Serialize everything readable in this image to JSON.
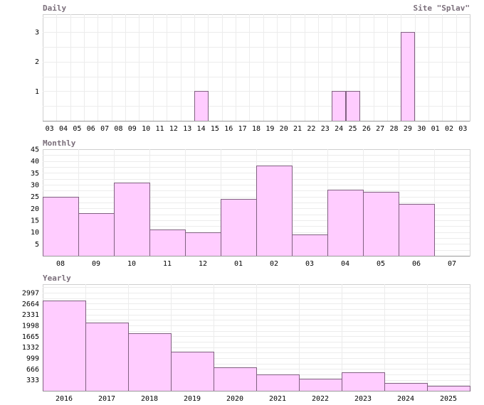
{
  "site_label": "Site \"Splav\"",
  "chart_data": [
    {
      "type": "bar",
      "title": "Daily",
      "categories": [
        "03",
        "04",
        "05",
        "06",
        "07",
        "08",
        "09",
        "10",
        "11",
        "12",
        "13",
        "14",
        "15",
        "16",
        "17",
        "18",
        "19",
        "20",
        "21",
        "22",
        "23",
        "24",
        "25",
        "26",
        "27",
        "28",
        "29",
        "30",
        "01",
        "02",
        "03"
      ],
      "values": [
        0,
        0,
        0,
        0,
        0,
        0,
        0,
        0,
        0,
        0,
        0,
        1,
        0,
        0,
        0,
        0,
        0,
        0,
        0,
        0,
        0,
        1,
        1,
        0,
        0,
        0,
        3,
        0,
        0,
        0,
        0
      ],
      "y_ticks": [
        1,
        2,
        3
      ],
      "ylim": [
        0,
        3.6
      ],
      "grid": true,
      "bar_color": "#ffccff",
      "bar_edge_color": "#806080"
    },
    {
      "type": "bar",
      "title": "Monthly",
      "categories": [
        "08",
        "09",
        "10",
        "11",
        "12",
        "01",
        "02",
        "03",
        "04",
        "05",
        "06",
        "07"
      ],
      "values": [
        25,
        18,
        31,
        11,
        10,
        24,
        38,
        9,
        28,
        27,
        22,
        0
      ],
      "y_ticks": [
        5,
        10,
        15,
        20,
        25,
        30,
        35,
        40,
        45
      ],
      "ylim": [
        0,
        45
      ],
      "grid": true,
      "bar_color": "#ffccff",
      "bar_edge_color": "#806080"
    },
    {
      "type": "bar",
      "title": "Yearly",
      "categories": [
        "2016",
        "2017",
        "2018",
        "2019",
        "2020",
        "2021",
        "2022",
        "2023",
        "2024",
        "2025"
      ],
      "values": [
        2750,
        2080,
        1770,
        1200,
        710,
        510,
        380,
        570,
        240,
        160
      ],
      "y_ticks": [
        333,
        666,
        999,
        1332,
        1665,
        1998,
        2331,
        2664,
        2997
      ],
      "ylim": [
        0,
        3260
      ],
      "grid": true,
      "bar_color": "#ffccff",
      "bar_edge_color": "#806080"
    }
  ]
}
